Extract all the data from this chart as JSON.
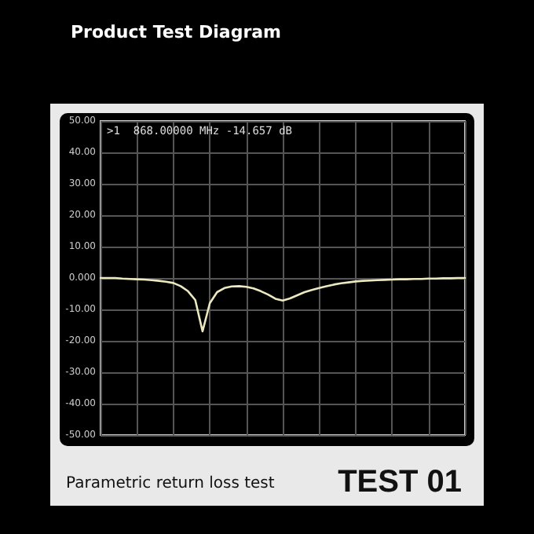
{
  "chart_data": {
    "type": "line",
    "title": "Product Test Diagram",
    "annotations": [
      ">1  868.00000 MHz -14.657 dB",
      "Parametric return loss test",
      "TEST 01"
    ],
    "categories": [
      null,
      null,
      null,
      null,
      null,
      null,
      null,
      null,
      null,
      null,
      null,
      null,
      null,
      null,
      null,
      null,
      null,
      null,
      null,
      null,
      null,
      null,
      null,
      null,
      null,
      null,
      null,
      null,
      null,
      null,
      null,
      null,
      null,
      null,
      null,
      null,
      null,
      null,
      null,
      null,
      null,
      null,
      null,
      null,
      null,
      null,
      null,
      null,
      null,
      null,
      null
    ],
    "series": [
      {
        "color": "#ece8c0",
        "values": [
          0,
          0,
          0,
          -0.2,
          -0.3,
          -0.4,
          -0.5,
          -0.7,
          -0.9,
          -1.2,
          -1.6,
          -2.6,
          -4.2,
          -7,
          -17,
          -8,
          -4.5,
          -3.2,
          -2.7,
          -2.6,
          -2.8,
          -3.3,
          -4.2,
          -5.3,
          -6.6,
          -7.2,
          -6.5,
          -5.5,
          -4.5,
          -3.8,
          -3.2,
          -2.6,
          -2.1,
          -1.7,
          -1.4,
          -1.1,
          -0.9,
          -0.8,
          -0.7,
          -0.6,
          -0.5,
          -0.4,
          -0.4,
          -0.3,
          -0.3,
          -0.2,
          -0.2,
          -0.1,
          -0.1,
          0,
          0
        ]
      }
    ],
    "ylim": [
      -50,
      50
    ],
    "yticks": [
      {
        "value": 50,
        "label": "50.00"
      },
      {
        "value": 40,
        "label": "40.00"
      },
      {
        "value": 30,
        "label": "30.00"
      },
      {
        "value": 20,
        "label": "20.00"
      },
      {
        "value": 10,
        "label": "10.00"
      },
      {
        "value": 0,
        "label": "0.000"
      },
      {
        "value": -10,
        "label": "-10.00"
      },
      {
        "value": -20,
        "label": "-20.00"
      },
      {
        "value": -30,
        "label": "-30.00"
      },
      {
        "value": -40,
        "label": "-40.00"
      },
      {
        "value": -50,
        "label": "-50.00"
      }
    ],
    "grid": true,
    "marker": "none",
    "line_style": "solid"
  }
}
